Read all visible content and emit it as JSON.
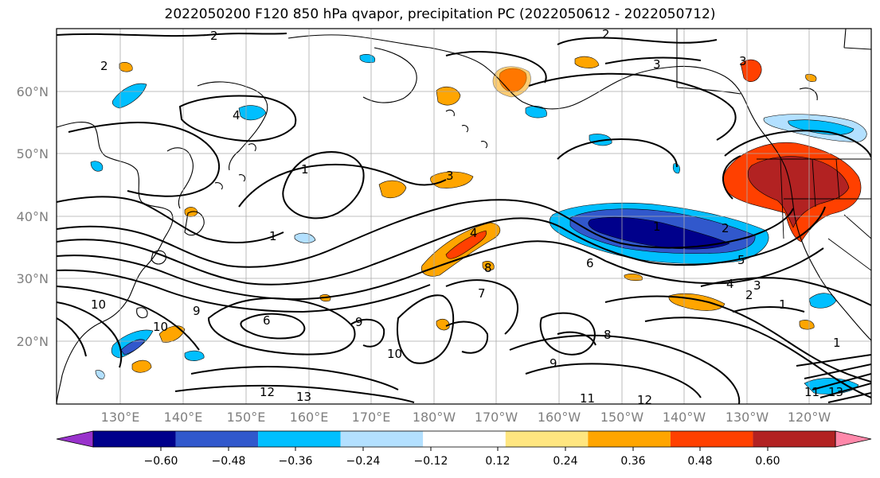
{
  "title": "2022050200 F120 850 hPa qvapor, precipitation PC (2022050612 - 2022050712)",
  "map": {
    "lon_labels": [
      "130°E",
      "140°E",
      "150°E",
      "160°E",
      "170°E",
      "180°W",
      "170°W",
      "160°W",
      "150°W",
      "140°W",
      "130°W",
      "120°W"
    ],
    "lat_labels": [
      "60°N",
      "50°N",
      "40°N",
      "30°N",
      "20°N"
    ],
    "contour_labels": [
      "2",
      "2",
      "2",
      "3",
      "3",
      "4",
      "1",
      "3",
      "1",
      "2",
      "1",
      "4",
      "8",
      "6",
      "5",
      "4",
      "3",
      "2",
      "1",
      "1",
      "10",
      "10",
      "9",
      "6",
      "7",
      "9",
      "10",
      "9",
      "8",
      "12",
      "13",
      "11",
      "12",
      "11",
      "13"
    ],
    "colors": {
      "coast": "#000000",
      "grid": "#aaaaaa",
      "pos_light": "#ffe680",
      "pos_orange": "#ffa500",
      "pos_red": "#ff4000",
      "pos_darkred": "#b22222",
      "neg_lightblue": "#b3e0ff",
      "neg_cyan": "#00bfff",
      "neg_blue": "#3158cc",
      "neg_navy": "#00008b"
    }
  },
  "colorbar": {
    "colors": [
      "#9932cc",
      "#00008b",
      "#3158cc",
      "#00bfff",
      "#b3e0ff",
      "#ffffff",
      "#ffe680",
      "#ffa500",
      "#ff4000",
      "#b22222",
      "#ff88aa"
    ],
    "tick_labels": [
      "−0.60",
      "−0.48",
      "−0.36",
      "−0.24",
      "−0.12",
      "0.12",
      "0.24",
      "0.36",
      "0.48",
      "0.60"
    ]
  }
}
